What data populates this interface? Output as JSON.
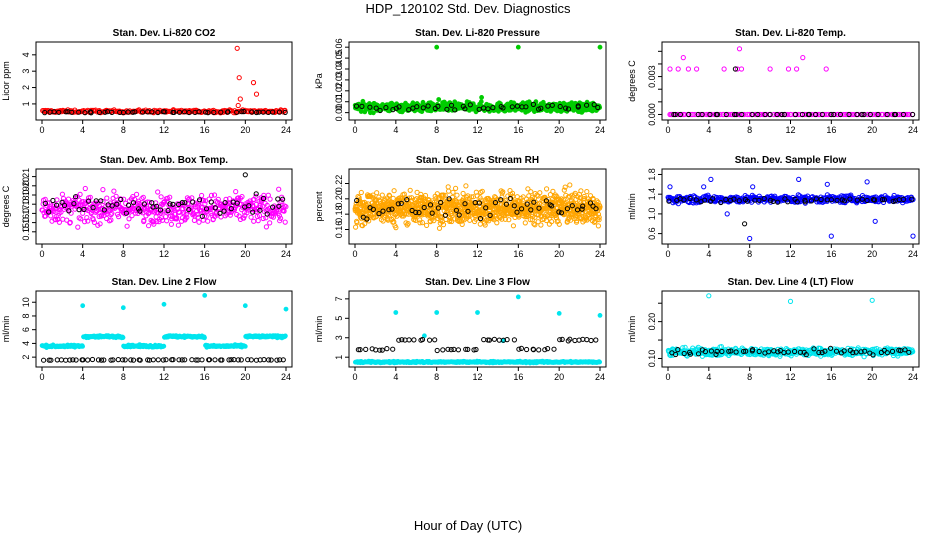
{
  "page": {
    "title": "HDP_120102  Std. Dev. Diagnostics",
    "xlabel": "Hour of Day (UTC)"
  },
  "colors": {
    "black": "#000000",
    "red": "#ff0000",
    "green": "#00cc00",
    "magenta": "#ff00ff",
    "orange": "#ffa500",
    "blue": "#0000ff",
    "cyan": "#00e5ee"
  },
  "chart_data": [
    {
      "id": "co2",
      "type": "scatter",
      "title": "Stan. Dev. Li-820 CO2",
      "ylabel": "Licor ppm",
      "xlim": [
        0,
        24
      ],
      "ylim": [
        0.2,
        4.6
      ],
      "xticks": [
        0,
        4,
        8,
        12,
        16,
        20,
        24
      ],
      "yticks": [
        1,
        2,
        3,
        4
      ],
      "ytick_labels": [
        "1",
        "2",
        "3",
        "4"
      ],
      "series": [
        {
          "name": "series-a",
          "color": "red",
          "base": 0.55,
          "noise": 0.08,
          "n": 220,
          "hollow": true,
          "outliers": [
            [
              19.2,
              4.4
            ],
            [
              19.4,
              2.6
            ],
            [
              19.5,
              1.3
            ],
            [
              20.8,
              2.3
            ],
            [
              21.1,
              1.6
            ],
            [
              19.3,
              0.9
            ]
          ]
        },
        {
          "name": "series-b",
          "color": "black",
          "base": 0.5,
          "noise": 0.04,
          "n": 50,
          "hollow": true
        }
      ]
    },
    {
      "id": "pressure",
      "type": "scatter",
      "title": "Stan. Dev. Li-820 Pressure",
      "ylabel": "kPa",
      "xlim": [
        0,
        24
      ],
      "ylim": [
        -0.004,
        0.062
      ],
      "xticks": [
        0,
        4,
        8,
        12,
        16,
        20,
        24
      ],
      "yticks": [
        0,
        0.01,
        0.02,
        0.03,
        0.04,
        0.05,
        0.06
      ],
      "ytick_labels": [
        "0.00",
        "0.01",
        "0.02",
        "0.03",
        "0.04",
        "0.05",
        "0.06"
      ],
      "series": [
        {
          "name": "series-a",
          "color": "green",
          "base": 0.005,
          "noise": 0.004,
          "n": 600,
          "hollow": false,
          "outliers": [
            [
              8,
              0.06
            ],
            [
              16,
              0.06
            ],
            [
              24,
              0.06
            ],
            [
              8.2,
              0.012
            ],
            [
              12.4,
              0.014
            ],
            [
              22,
              0.009
            ]
          ]
        },
        {
          "name": "series-b",
          "color": "black",
          "base": 0.005,
          "noise": 0.003,
          "n": 45,
          "hollow": true
        }
      ]
    },
    {
      "id": "temp",
      "type": "scatter",
      "title": "Stan. Dev. Li-820 Temp.",
      "ylabel": "degrees C",
      "xlim": [
        0,
        24
      ],
      "ylim": [
        -0.0002,
        0.0055
      ],
      "xticks": [
        0,
        4,
        8,
        12,
        16,
        20,
        24
      ],
      "yticks": [
        0,
        0.001,
        0.002,
        0.003,
        0.004,
        0.005
      ],
      "ytick_labels": [
        "0.000",
        "",
        "",
        "0.003",
        "",
        ""
      ],
      "series": [
        {
          "name": "series-a",
          "color": "magenta",
          "base": 0,
          "noise": 0,
          "n": 120,
          "hollow": true,
          "outliers": [
            [
              0.2,
              0.0036
            ],
            [
              1,
              0.0036
            ],
            [
              1.5,
              0.0045
            ],
            [
              2,
              0.0036
            ],
            [
              2.8,
              0.0036
            ],
            [
              5.5,
              0.0036
            ],
            [
              6.8,
              0.0036
            ],
            [
              7,
              0.0052
            ],
            [
              7.2,
              0.0036
            ],
            [
              10,
              0.0036
            ],
            [
              11.8,
              0.0036
            ],
            [
              12.6,
              0.0036
            ],
            [
              13.2,
              0.0045
            ],
            [
              15.5,
              0.0036
            ],
            [
              7,
              0.0
            ]
          ]
        },
        {
          "name": "series-b",
          "color": "black",
          "base": 0,
          "noise": 0,
          "n": 40,
          "hollow": true,
          "outliers": [
            [
              6.6,
              0.0036
            ]
          ]
        }
      ]
    },
    {
      "id": "ambbox",
      "type": "scatter",
      "title": "Stan. Dev. Amb. Box Temp.",
      "ylabel": "degrees C",
      "xlim": [
        0,
        24
      ],
      "ylim": [
        0.14,
        0.215
      ],
      "xticks": [
        0,
        4,
        8,
        12,
        16,
        20,
        24
      ],
      "yticks": [
        0.15,
        0.16,
        0.17,
        0.18,
        0.19,
        0.2,
        0.21
      ],
      "ytick_labels": [
        "0.15",
        "0.16",
        "0.17",
        "0.18",
        "0.19",
        "0.20",
        "0.21"
      ],
      "series": [
        {
          "name": "series-a",
          "color": "magenta",
          "base": 0.175,
          "noise": 0.015,
          "n": 520,
          "hollow": true
        },
        {
          "name": "series-b",
          "color": "black",
          "base": 0.177,
          "noise": 0.01,
          "n": 60,
          "hollow": true,
          "outliers": [
            [
              20,
              0.212
            ]
          ]
        }
      ]
    },
    {
      "id": "rh",
      "type": "scatter",
      "title": "Stan. Dev. Gas Stream RH",
      "ylabel": "percent",
      "xlim": [
        0,
        24
      ],
      "ylim": [
        0.145,
        0.235
      ],
      "xticks": [
        0,
        4,
        8,
        12,
        16,
        20,
        24
      ],
      "yticks": [
        0.16,
        0.18,
        0.2,
        0.22
      ],
      "ytick_labels": [
        "0.16",
        "0.18",
        "0.20",
        "0.22"
      ],
      "series": [
        {
          "name": "series-a",
          "color": "orange",
          "base": 0.188,
          "noise": 0.02,
          "n": 1100,
          "hollow": true
        },
        {
          "name": "series-b",
          "color": "black",
          "base": 0.188,
          "noise": 0.012,
          "n": 55,
          "hollow": true
        }
      ]
    },
    {
      "id": "sample",
      "type": "scatter",
      "title": "Stan. Dev. Sample Flow",
      "ylabel": "ml/min",
      "xlim": [
        0,
        24
      ],
      "ylim": [
        0.45,
        1.85
      ],
      "xticks": [
        0,
        4,
        8,
        12,
        16,
        20,
        24
      ],
      "yticks": [
        0.6,
        1.0,
        1.4,
        1.8
      ],
      "ytick_labels": [
        "0.6",
        "1.0",
        "1.4",
        "1.8"
      ],
      "series": [
        {
          "name": "series-a",
          "color": "blue",
          "base": 1.3,
          "noise": 0.07,
          "n": 420,
          "hollow": true,
          "outliers": [
            [
              0.2,
              1.55
            ],
            [
              3.5,
              1.55
            ],
            [
              4.2,
              1.7
            ],
            [
              5.8,
              1.0
            ],
            [
              8,
              0.5
            ],
            [
              8.3,
              1.55
            ],
            [
              12.8,
              1.7
            ],
            [
              15.6,
              1.6
            ],
            [
              16,
              0.55
            ],
            [
              19.5,
              1.65
            ],
            [
              20.3,
              0.85
            ],
            [
              24,
              0.55
            ]
          ]
        },
        {
          "name": "series-b",
          "color": "black",
          "base": 1.28,
          "noise": 0.05,
          "n": 50,
          "hollow": true,
          "outliers": [
            [
              7.5,
              0.8
            ]
          ]
        }
      ]
    },
    {
      "id": "line2",
      "type": "scatter",
      "title": "Stan. Dev. Line 2 Flow",
      "ylabel": "ml/min",
      "xlim": [
        0,
        24
      ],
      "ylim": [
        1,
        11.2
      ],
      "xticks": [
        0,
        4,
        8,
        12,
        16,
        20,
        24
      ],
      "yticks": [
        2,
        4,
        6,
        8,
        10
      ],
      "ytick_labels": [
        "2",
        "4",
        "6",
        "8",
        "10"
      ],
      "steps": [
        [
          0,
          3.6,
          3.6
        ],
        [
          4,
          5.0,
          4.8
        ],
        [
          8,
          3.6,
          3.6
        ],
        [
          12,
          5.0,
          4.8
        ],
        [
          16,
          3.6,
          3.6
        ],
        [
          20,
          5.0,
          4.8
        ]
      ],
      "series": [
        {
          "name": "series-a",
          "color": "cyan",
          "base": 0,
          "noise": 0.15,
          "n": 380,
          "hollow": false,
          "outliers": [
            [
              4,
              9.5
            ],
            [
              8,
              9.2
            ],
            [
              12,
              9.7
            ],
            [
              16,
              11.0
            ],
            [
              20,
              9.5
            ],
            [
              24,
              9.0
            ]
          ]
        },
        {
          "name": "series-b",
          "color": "black",
          "base": 1.6,
          "noise": 0.05,
          "n": 60,
          "hollow": true
        }
      ]
    },
    {
      "id": "line3",
      "type": "scatter",
      "title": "Stan. Dev. Line 3 Flow",
      "ylabel": "ml/min",
      "xlim": [
        0,
        24
      ],
      "ylim": [
        0.3,
        7.5
      ],
      "xticks": [
        0,
        4,
        8,
        12,
        16,
        20,
        24
      ],
      "yticks": [
        1,
        3,
        5,
        7
      ],
      "ytick_labels": [
        "1",
        "3",
        "5",
        "7"
      ],
      "steps": [
        [
          0,
          1.8,
          1.8
        ],
        [
          4,
          2.8,
          2.8
        ],
        [
          8,
          1.8,
          1.8
        ],
        [
          12,
          2.8,
          2.8
        ],
        [
          16,
          1.8,
          1.8
        ],
        [
          20,
          2.8,
          2.8
        ]
      ],
      "series": [
        {
          "name": "series-a",
          "color": "cyan",
          "base": 0.5,
          "noise": 0.08,
          "n": 360,
          "hollow": false,
          "outliers": [
            [
              4,
              5.6
            ],
            [
              8,
              5.6
            ],
            [
              12,
              5.6
            ],
            [
              16,
              7.2
            ],
            [
              20,
              5.5
            ],
            [
              24,
              5.3
            ],
            [
              6.8,
              3.2
            ],
            [
              14.5,
              2.7
            ]
          ]
        },
        {
          "name": "series-b",
          "color": "black",
          "base": 0,
          "noise": 0.1,
          "n": 55,
          "hollow": true
        }
      ]
    },
    {
      "id": "line4",
      "type": "scatter",
      "title": "Stan. Dev. Line 4 (LT) Flow",
      "ylabel": "ml/min",
      "xlim": [
        0,
        24
      ],
      "ylim": [
        0.085,
        0.275
      ],
      "xticks": [
        0,
        4,
        8,
        12,
        16,
        20,
        24
      ],
      "yticks": [
        0.1,
        0.15,
        0.2,
        0.25
      ],
      "ytick_labels": [
        "0.10",
        "",
        "0.20",
        ""
      ],
      "series": [
        {
          "name": "series-a",
          "color": "cyan",
          "base": 0.118,
          "noise": 0.01,
          "n": 520,
          "hollow": true,
          "outliers": [
            [
              4,
              0.27
            ],
            [
              12,
              0.255
            ],
            [
              20,
              0.258
            ]
          ]
        },
        {
          "name": "series-b",
          "color": "black",
          "base": 0.118,
          "noise": 0.007,
          "n": 55,
          "hollow": true
        }
      ]
    }
  ]
}
